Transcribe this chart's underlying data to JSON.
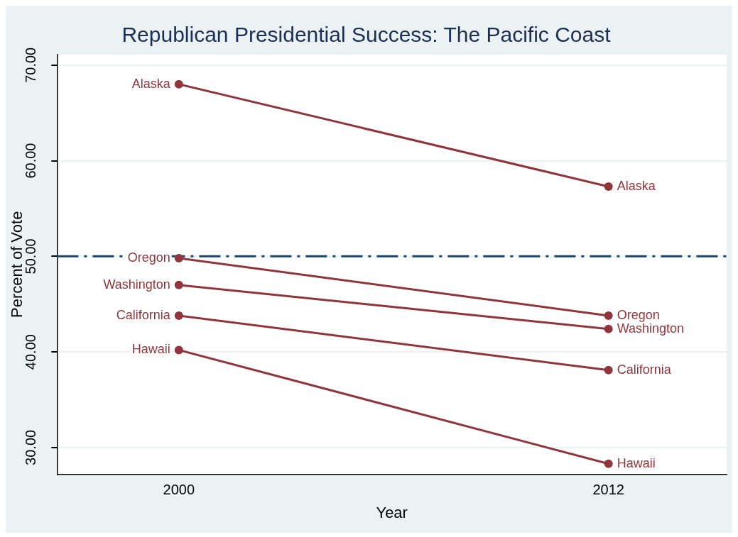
{
  "chart_data": {
    "type": "line",
    "title": "Republican Presidential Success: The Pacific Coast",
    "xlabel": "Year",
    "ylabel": "Percent of Vote",
    "x": [
      2000,
      2012
    ],
    "series": [
      {
        "name": "Alaska",
        "color": "#90353b",
        "values": [
          68.0,
          57.3
        ]
      },
      {
        "name": "Oregon",
        "color": "#90353b",
        "values": [
          49.8,
          43.8
        ]
      },
      {
        "name": "Washington",
        "color": "#90353b",
        "values": [
          47.0,
          42.4
        ]
      },
      {
        "name": "California",
        "color": "#90353b",
        "values": [
          43.8,
          38.1
        ]
      },
      {
        "name": "Hawaii",
        "color": "#90353b",
        "values": [
          40.2,
          28.3
        ]
      }
    ],
    "xlim": [
      1996.6,
      2015.3
    ],
    "xticks": [
      2000,
      2012
    ],
    "ylim": [
      27.2,
      71.1
    ],
    "yticks": [
      {
        "value": 30,
        "label": "30.00"
      },
      {
        "value": 40,
        "label": "40.00"
      },
      {
        "value": 50,
        "label": "50.00"
      },
      {
        "value": 60,
        "label": "60.00"
      },
      {
        "value": 70,
        "label": "70.00"
      }
    ],
    "ref_lines": [
      {
        "axis": "y",
        "value": 50,
        "color": "#1a476f",
        "line_style": "dashdot"
      }
    ],
    "grid": "y",
    "marker": "circle",
    "line_style": "solid"
  }
}
